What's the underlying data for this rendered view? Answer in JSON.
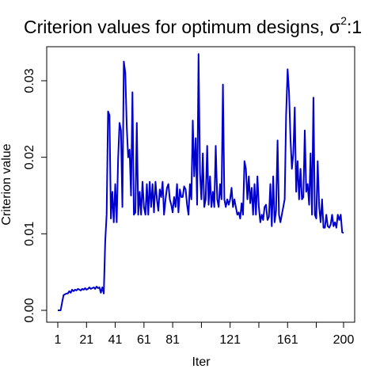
{
  "chart_data": {
    "type": "line",
    "title": "Criterion values for optimum designs, σ²:1",
    "title_parts": {
      "text": "Criterion values for optimum designs, σ",
      "sup": "2",
      "suffix": ":1"
    },
    "xlabel": "Iter",
    "ylabel": "Criterion value",
    "xlim": [
      1,
      200
    ],
    "ylim": [
      0.0,
      0.035
    ],
    "x_ticks": [
      1,
      21,
      41,
      61,
      81,
      101,
      121,
      141,
      161,
      181,
      200
    ],
    "x_tick_labels": [
      "1",
      "21",
      "41",
      "61",
      "81",
      "",
      "121",
      "",
      "161",
      "",
      "200"
    ],
    "y_ticks": [
      0.0,
      0.01,
      0.02,
      0.03
    ],
    "y_tick_labels": [
      "0.00",
      "0.01",
      "0.02",
      "0.03"
    ],
    "grid": false,
    "line_color": "#0000cc",
    "series": [
      {
        "points": [
          [
            1,
            0.0
          ],
          [
            2,
            0.0
          ],
          [
            3,
            0.0
          ],
          [
            4,
            0.001
          ],
          [
            5,
            0.002
          ],
          [
            6,
            0.0021
          ],
          [
            7,
            0.0022
          ],
          [
            8,
            0.0022
          ],
          [
            9,
            0.0025
          ],
          [
            10,
            0.0023
          ],
          [
            11,
            0.0027
          ],
          [
            12,
            0.0025
          ],
          [
            13,
            0.0027
          ],
          [
            14,
            0.0026
          ],
          [
            15,
            0.0028
          ],
          [
            16,
            0.0027
          ],
          [
            17,
            0.0026
          ],
          [
            18,
            0.0028
          ],
          [
            19,
            0.0027
          ],
          [
            20,
            0.0029
          ],
          [
            21,
            0.0027
          ],
          [
            22,
            0.0028
          ],
          [
            23,
            0.003
          ],
          [
            24,
            0.0028
          ],
          [
            25,
            0.0029
          ],
          [
            26,
            0.003
          ],
          [
            27,
            0.0028
          ],
          [
            28,
            0.0031
          ],
          [
            29,
            0.0029
          ],
          [
            30,
            0.003
          ],
          [
            31,
            0.0023
          ],
          [
            32,
            0.003
          ],
          [
            33,
            0.0022
          ],
          [
            34,
            0.009
          ],
          [
            35,
            0.0125
          ],
          [
            36,
            0.026
          ],
          [
            37,
            0.0255
          ],
          [
            38,
            0.012
          ],
          [
            39,
            0.0155
          ],
          [
            40,
            0.0115
          ],
          [
            41,
            0.0165
          ],
          [
            42,
            0.0115
          ],
          [
            43,
            0.0198
          ],
          [
            44,
            0.0245
          ],
          [
            45,
            0.0235
          ],
          [
            46,
            0.0135
          ],
          [
            47,
            0.0325
          ],
          [
            48,
            0.031
          ],
          [
            49,
            0.024
          ],
          [
            50,
            0.02
          ],
          [
            51,
            0.021
          ],
          [
            52,
            0.015
          ],
          [
            53,
            0.0285
          ],
          [
            54,
            0.0125
          ],
          [
            55,
            0.0128
          ],
          [
            56,
            0.0245
          ],
          [
            57,
            0.0125
          ],
          [
            58,
            0.0155
          ],
          [
            59,
            0.0125
          ],
          [
            60,
            0.0168
          ],
          [
            61,
            0.0135
          ],
          [
            62,
            0.0125
          ],
          [
            63,
            0.0165
          ],
          [
            64,
            0.0125
          ],
          [
            65,
            0.0168
          ],
          [
            66,
            0.0135
          ],
          [
            67,
            0.0165
          ],
          [
            68,
            0.0128
          ],
          [
            69,
            0.0168
          ],
          [
            70,
            0.0145
          ],
          [
            71,
            0.013
          ],
          [
            72,
            0.0158
          ],
          [
            73,
            0.0148
          ],
          [
            74,
            0.0168
          ],
          [
            75,
            0.0125
          ],
          [
            76,
            0.0145
          ],
          [
            77,
            0.016
          ],
          [
            78,
            0.0165
          ],
          [
            79,
            0.0145
          ],
          [
            80,
            0.0138
          ],
          [
            81,
            0.0128
          ],
          [
            82,
            0.0148
          ],
          [
            83,
            0.0135
          ],
          [
            84,
            0.0165
          ],
          [
            85,
            0.0128
          ],
          [
            86,
            0.0158
          ],
          [
            87,
            0.0148
          ],
          [
            88,
            0.0148
          ],
          [
            89,
            0.0162
          ],
          [
            90,
            0.0158
          ],
          [
            91,
            0.0138
          ],
          [
            92,
            0.0125
          ],
          [
            93,
            0.0165
          ],
          [
            94,
            0.0145
          ],
          [
            95,
            0.0248
          ],
          [
            96,
            0.0175
          ],
          [
            97,
            0.0225
          ],
          [
            98,
            0.0138
          ],
          [
            99,
            0.0335
          ],
          [
            100,
            0.018
          ],
          [
            101,
            0.0145
          ],
          [
            102,
            0.0205
          ],
          [
            103,
            0.0135
          ],
          [
            104,
            0.0145
          ],
          [
            105,
            0.0215
          ],
          [
            106,
            0.0138
          ],
          [
            107,
            0.0175
          ],
          [
            108,
            0.0135
          ],
          [
            109,
            0.0155
          ],
          [
            110,
            0.0135
          ],
          [
            111,
            0.0215
          ],
          [
            112,
            0.0145
          ],
          [
            113,
            0.0135
          ],
          [
            114,
            0.0165
          ],
          [
            115,
            0.0145
          ],
          [
            116,
            0.0295
          ],
          [
            117,
            0.0145
          ],
          [
            118,
            0.0135
          ],
          [
            119,
            0.0145
          ],
          [
            120,
            0.0138
          ],
          [
            121,
            0.0145
          ],
          [
            122,
            0.016
          ],
          [
            123,
            0.0135
          ],
          [
            124,
            0.0145
          ],
          [
            125,
            0.0135
          ],
          [
            126,
            0.0125
          ],
          [
            127,
            0.0128
          ],
          [
            128,
            0.012
          ],
          [
            129,
            0.014
          ],
          [
            130,
            0.0125
          ],
          [
            131,
            0.0195
          ],
          [
            132,
            0.0185
          ],
          [
            133,
            0.0145
          ],
          [
            134,
            0.0175
          ],
          [
            135,
            0.014
          ],
          [
            136,
            0.016
          ],
          [
            137,
            0.0125
          ],
          [
            138,
            0.0165
          ],
          [
            139,
            0.0125
          ],
          [
            140,
            0.0175
          ],
          [
            141,
            0.0135
          ],
          [
            142,
            0.0115
          ],
          [
            143,
            0.0125
          ],
          [
            144,
            0.0118
          ],
          [
            145,
            0.0135
          ],
          [
            146,
            0.0138
          ],
          [
            147,
            0.0118
          ],
          [
            148,
            0.0122
          ],
          [
            149,
            0.0165
          ],
          [
            150,
            0.011
          ],
          [
            151,
            0.0175
          ],
          [
            152,
            0.0115
          ],
          [
            153,
            0.013
          ],
          [
            154,
            0.0222
          ],
          [
            155,
            0.0125
          ],
          [
            156,
            0.0115
          ],
          [
            157,
            0.0125
          ],
          [
            158,
            0.0135
          ],
          [
            159,
            0.0145
          ],
          [
            160,
            0.0255
          ],
          [
            161,
            0.0315
          ],
          [
            162,
            0.0285
          ],
          [
            163,
            0.0225
          ],
          [
            164,
            0.0185
          ],
          [
            165,
            0.0205
          ],
          [
            166,
            0.0265
          ],
          [
            167,
            0.0155
          ],
          [
            168,
            0.0195
          ],
          [
            169,
            0.0145
          ],
          [
            170,
            0.0185
          ],
          [
            171,
            0.0145
          ],
          [
            172,
            0.0148
          ],
          [
            173,
            0.0235
          ],
          [
            174,
            0.0155
          ],
          [
            175,
            0.0165
          ],
          [
            176,
            0.0138
          ],
          [
            177,
            0.0205
          ],
          [
            178,
            0.0125
          ],
          [
            179,
            0.0278
          ],
          [
            180,
            0.0125
          ],
          [
            181,
            0.012
          ],
          [
            182,
            0.0195
          ],
          [
            183,
            0.0135
          ],
          [
            184,
            0.0115
          ],
          [
            185,
            0.0145
          ],
          [
            186,
            0.0108
          ],
          [
            187,
            0.0108
          ],
          [
            188,
            0.0125
          ],
          [
            189,
            0.011
          ],
          [
            190,
            0.0108
          ],
          [
            191,
            0.0112
          ],
          [
            192,
            0.0125
          ],
          [
            193,
            0.011
          ],
          [
            194,
            0.0115
          ],
          [
            195,
            0.0108
          ],
          [
            196,
            0.0125
          ],
          [
            197,
            0.0118
          ],
          [
            198,
            0.0125
          ],
          [
            199,
            0.0102
          ],
          [
            200,
            0.0101
          ]
        ]
      }
    ]
  }
}
